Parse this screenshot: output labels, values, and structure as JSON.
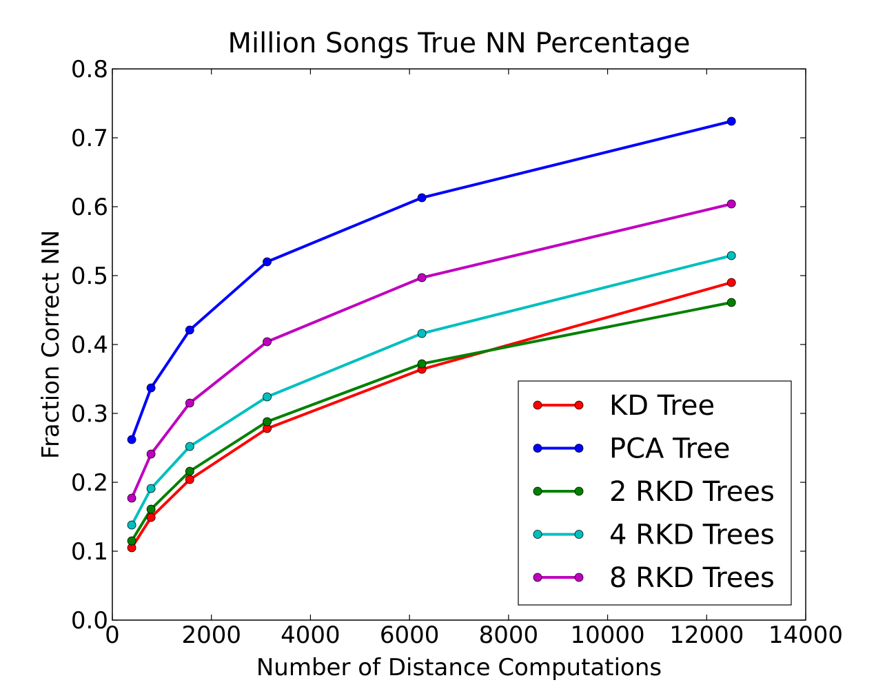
{
  "chart_data": {
    "type": "line",
    "title": "Million Songs True NN Percentage",
    "xlabel": "Number of Distance Computations",
    "ylabel": "Fraction Correct NN",
    "xlim": [
      0,
      14000
    ],
    "ylim": [
      0.0,
      0.8
    ],
    "xticks": [
      0,
      2000,
      4000,
      6000,
      8000,
      10000,
      12000,
      14000
    ],
    "xtick_labels": [
      "0",
      "2000",
      "4000",
      "6000",
      "8000",
      "10000",
      "12000",
      "14000"
    ],
    "yticks": [
      0.0,
      0.1,
      0.2,
      0.3,
      0.4,
      0.5,
      0.6,
      0.7,
      0.8
    ],
    "ytick_labels": [
      "0.0",
      "0.1",
      "0.2",
      "0.3",
      "0.4",
      "0.5",
      "0.6",
      "0.7",
      "0.8"
    ],
    "grid": false,
    "legend_position": "lower-right",
    "x": [
      391,
      781,
      1563,
      3125,
      6250,
      12500
    ],
    "series": [
      {
        "name": "KD Tree",
        "color": "#ff0000",
        "values": [
          0.105,
          0.149,
          0.204,
          0.278,
          0.364,
          0.49
        ]
      },
      {
        "name": "PCA Tree",
        "color": "#0000ff",
        "values": [
          0.262,
          0.337,
          0.421,
          0.52,
          0.613,
          0.724
        ]
      },
      {
        "name": "2 RKD Trees",
        "color": "#008000",
        "values": [
          0.115,
          0.161,
          0.216,
          0.288,
          0.372,
          0.461
        ]
      },
      {
        "name": "4 RKD Trees",
        "color": "#00bfbf",
        "values": [
          0.138,
          0.191,
          0.252,
          0.324,
          0.416,
          0.529
        ]
      },
      {
        "name": "8 RKD Trees",
        "color": "#bf00bf",
        "values": [
          0.177,
          0.241,
          0.315,
          0.404,
          0.497,
          0.604
        ]
      }
    ]
  }
}
